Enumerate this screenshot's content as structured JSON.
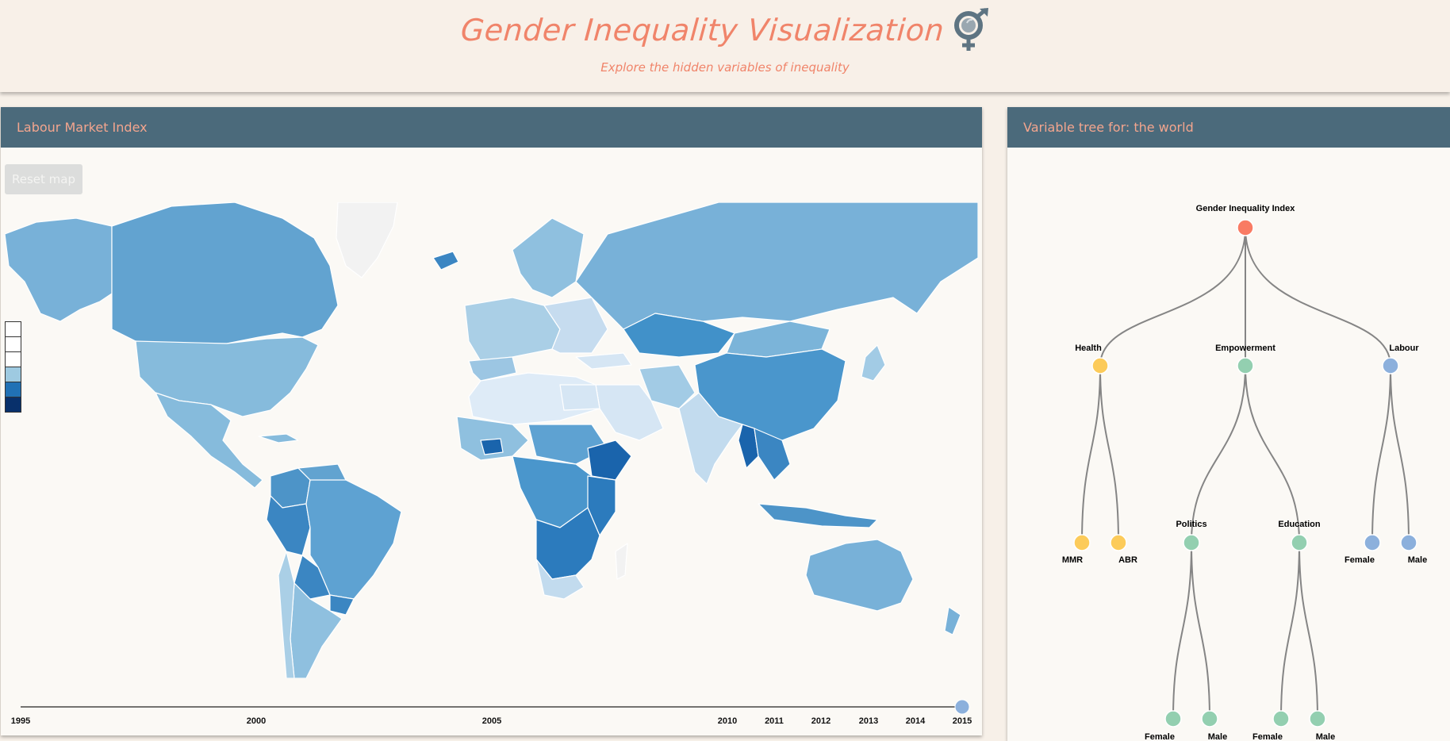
{
  "header": {
    "title": "Gender Inequality Visualization",
    "subtitle": "Explore the hidden variables of inequality"
  },
  "map_panel": {
    "title": "Labour Market Index",
    "reset_label": "Reset map",
    "legend_colors": [
      "#ffffff",
      "#ffffff",
      "#ffffff",
      "#9ecae1",
      "#2171b5",
      "#08306b"
    ]
  },
  "timeline": {
    "years": [
      "1995",
      "2000",
      "2005",
      "2010",
      "2011",
      "2012",
      "2013",
      "2014",
      "2015"
    ],
    "selected": "2015"
  },
  "tree_panel": {
    "title": "Variable tree for: the world",
    "nodes": {
      "root": "Gender Inequality Index",
      "health": "Health",
      "empowerment": "Empowerment",
      "labour": "Labour",
      "mmr": "MMR",
      "abr": "ABR",
      "politics": "Politics",
      "education": "Education",
      "labour_female": "Female",
      "labour_male": "Male",
      "politics_female": "Female",
      "politics_male": "Male",
      "education_female": "Female",
      "education_male": "Male"
    },
    "colors": {
      "root": "#f97b63",
      "health": "#fccb5a",
      "empowerment": "#93cfb0",
      "labour": "#8cb0dc"
    }
  }
}
